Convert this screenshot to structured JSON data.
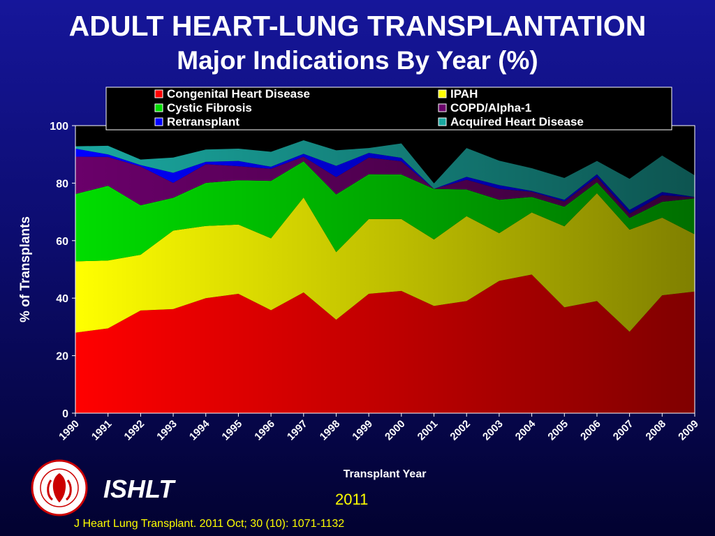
{
  "title_line1": "ADULT HEART-LUNG TRANSPLANTATION",
  "title_line2": "Major Indications By Year (%)",
  "footer": {
    "org": "ISHLT",
    "year": "2011",
    "citation": "J Heart Lung Transplant. 2011 Oct; 30 (10): 1071-1132"
  },
  "chart_data": {
    "type": "area",
    "stacked": true,
    "xlabel": "Transplant Year",
    "ylabel": "% of Transplants",
    "ylim": [
      0,
      100
    ],
    "yticks": [
      0,
      20,
      40,
      60,
      80,
      100
    ],
    "legend_position": "top",
    "x": [
      "1990",
      "1991",
      "1992",
      "1993",
      "1994",
      "1995",
      "1996",
      "1997",
      "1998",
      "1999",
      "2000",
      "2001",
      "2002",
      "2003",
      "2004",
      "2005",
      "2006",
      "2007",
      "2008",
      "2009"
    ],
    "series": [
      {
        "name": "Congenital Heart Disease",
        "color": "#ff0000",
        "values": [
          28,
          29.5,
          35.7,
          36.2,
          40,
          41.5,
          35.8,
          42,
          32.5,
          41.5,
          42.5,
          37.3,
          39,
          46,
          48.2,
          36.8,
          39,
          28.3,
          41,
          42.3
        ]
      },
      {
        "name": "IPAH",
        "color": "#ffff00",
        "values": [
          24.8,
          23.6,
          19.4,
          27.3,
          25.1,
          24.1,
          25,
          33,
          23.5,
          26,
          25,
          23.1,
          29.5,
          16.6,
          21.6,
          28.2,
          37.5,
          35.5,
          27,
          19.9
        ]
      },
      {
        "name": "Cystic Fibrosis",
        "color": "#00dd00",
        "values": [
          23.4,
          26,
          17.2,
          11.4,
          15,
          15.4,
          20,
          12.6,
          20.1,
          15.6,
          15.5,
          17.6,
          9.3,
          11.6,
          5.4,
          6.8,
          3.8,
          4.1,
          5.5,
          12.5
        ]
      },
      {
        "name": "COPD/Alpha-1",
        "color": "#6a006a",
        "values": [
          13,
          10,
          13.5,
          5.2,
          6.5,
          4.9,
          4.2,
          1.6,
          6,
          5.8,
          4.6,
          0,
          3.4,
          3.8,
          1.8,
          1.8,
          1.8,
          1.5,
          2.3,
          0.4
        ]
      },
      {
        "name": "Retransplant",
        "color": "#0000ff",
        "values": [
          2.8,
          0.9,
          0.5,
          3.5,
          0.8,
          1.8,
          0.7,
          1,
          3.9,
          1.6,
          1.2,
          0,
          1,
          1.3,
          0.3,
          0.6,
          1,
          1.3,
          1.1,
          0.1
        ]
      },
      {
        "name": "Acquired Heart Disease",
        "color": "#1aa8a0",
        "values": [
          0.8,
          3,
          1.9,
          5.3,
          4.3,
          4.3,
          5.2,
          4.7,
          5.4,
          1.7,
          5,
          1.9,
          10,
          8.5,
          7.9,
          7.6,
          4.6,
          10.8,
          12.7,
          7.5
        ]
      }
    ]
  }
}
